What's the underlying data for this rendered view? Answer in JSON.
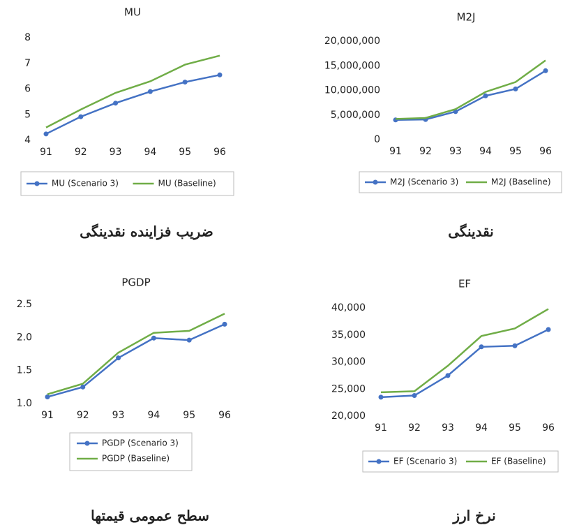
{
  "chart_data": [
    {
      "type": "line",
      "title": "MU",
      "caption": "ضریب فزاینده نقدینگی",
      "categories": [
        "91",
        "92",
        "93",
        "94",
        "95",
        "96"
      ],
      "series": [
        {
          "name": "MU (Scenario 3)",
          "color": "#4472c4",
          "markers": true,
          "values": [
            4.25,
            4.92,
            5.45,
            5.9,
            6.27,
            6.55
          ]
        },
        {
          "name": "MU (Baseline)",
          "color": "#70ad47",
          "markers": false,
          "values": [
            4.5,
            5.2,
            5.85,
            6.3,
            6.95,
            7.3
          ]
        }
      ],
      "ylim": [
        4,
        8
      ],
      "yticks": [
        4,
        5,
        6,
        7,
        8
      ],
      "legend": "bottom"
    },
    {
      "type": "line",
      "title": "M2J",
      "caption": "نقدینگی",
      "categories": [
        "91",
        "92",
        "93",
        "94",
        "95",
        "96"
      ],
      "series": [
        {
          "name": "M2J (Scenario 3)",
          "color": "#4472c4",
          "markers": true,
          "values": [
            4000000,
            4100000,
            5700000,
            8900000,
            10300000,
            14000000
          ]
        },
        {
          "name": "M2J (Baseline)",
          "color": "#70ad47",
          "markers": false,
          "values": [
            4200000,
            4400000,
            6200000,
            9700000,
            11700000,
            16100000
          ]
        }
      ],
      "ylim": [
        0,
        20000000
      ],
      "yticks": [
        0,
        {
          "value": 5000000,
          "label": "5,000,000"
        },
        {
          "value": 10000000,
          "label": "10,000,000"
        },
        {
          "value": 15000000,
          "label": "15,000,000"
        },
        {
          "value": 20000000,
          "label": "20,000,000"
        }
      ],
      "legend": "bottom"
    },
    {
      "type": "line",
      "title": "PGDP",
      "caption": "سطح عمومی قیمتها",
      "categories": [
        "91",
        "92",
        "93",
        "94",
        "95",
        "96"
      ],
      "series": [
        {
          "name": "PGDP (Scenario 3)",
          "color": "#4472c4",
          "markers": true,
          "values": [
            1.1,
            1.25,
            1.69,
            1.99,
            1.96,
            2.2
          ]
        },
        {
          "name": "PGDP (Baseline)",
          "color": "#70ad47",
          "markers": false,
          "values": [
            1.14,
            1.3,
            1.77,
            2.07,
            2.1,
            2.36
          ]
        }
      ],
      "ylim": [
        1.0,
        2.5
      ],
      "yticks": [
        {
          "value": 1.0,
          "label": "1.0"
        },
        1.5,
        {
          "value": 2.0,
          "label": "2.0"
        },
        2.5
      ],
      "legend": "bottom"
    },
    {
      "type": "line",
      "title": "EF",
      "caption": "نرخ ارز",
      "categories": [
        "91",
        "92",
        "93",
        "94",
        "95",
        "96"
      ],
      "series": [
        {
          "name": "EF (Scenario 3)",
          "color": "#4472c4",
          "markers": true,
          "values": [
            23500,
            23800,
            27500,
            32800,
            33000,
            36000
          ]
        },
        {
          "name": "EF (Baseline)",
          "color": "#70ad47",
          "markers": false,
          "values": [
            24400,
            24600,
            29300,
            34800,
            36200,
            39800
          ]
        }
      ],
      "ylim": [
        20000,
        40000
      ],
      "yticks": [
        {
          "value": 20000,
          "label": "20,000"
        },
        {
          "value": 25000,
          "label": "25,000"
        },
        {
          "value": 30000,
          "label": "30,000"
        },
        {
          "value": 35000,
          "label": "35,000"
        },
        {
          "value": 40000,
          "label": "40,000"
        }
      ],
      "legend": "bottom"
    }
  ]
}
